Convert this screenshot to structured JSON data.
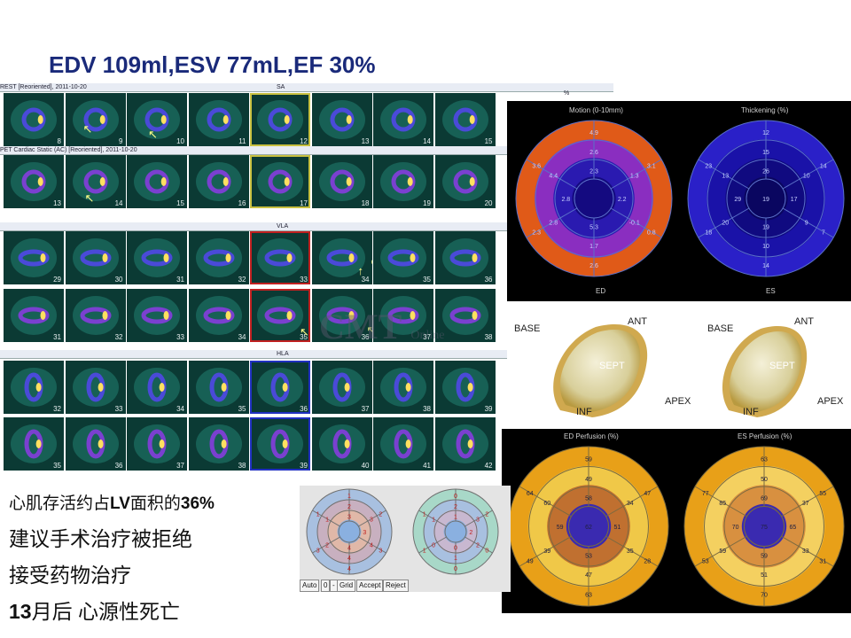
{
  "title": "EDV 109ml,ESV 77mL,EF 30%",
  "scan_panel": {
    "sa_header": "REST [Reoriented], 2011-10-20",
    "sa_view": "SA",
    "pct_label": "%",
    "pet_header": "PET Cardiac Static (AC) [Reoriented], 2011-10-20",
    "vla_view": "VLA",
    "hla_view": "HLA",
    "rows": [
      {
        "name": "sa-rest",
        "slices": [
          "8",
          "9",
          "10",
          "11",
          "12",
          "13",
          "14",
          "15"
        ]
      },
      {
        "name": "sa-pet",
        "slices": [
          "13",
          "14",
          "15",
          "16",
          "17",
          "18",
          "19",
          "20"
        ]
      },
      {
        "name": "vla-rest",
        "slices": [
          "29",
          "30",
          "31",
          "32",
          "33",
          "34",
          "35",
          "36"
        ]
      },
      {
        "name": "vla-pet",
        "slices": [
          "31",
          "32",
          "33",
          "34",
          "35",
          "36",
          "37",
          "38"
        ]
      },
      {
        "name": "hla-rest",
        "slices": [
          "32",
          "33",
          "34",
          "35",
          "36",
          "37",
          "38",
          "39"
        ]
      },
      {
        "name": "hla-pet",
        "slices": [
          "35",
          "36",
          "37",
          "38",
          "39",
          "40",
          "41",
          "42"
        ]
      }
    ]
  },
  "watermark": {
    "main": "CMT",
    "sub": "Online"
  },
  "polar_top": {
    "motion_title": "Motion (0-10mm)",
    "thickening_title": "Thickening (%)",
    "ed_label": "ED",
    "es_label": "ES",
    "motion_values": [
      "4.9",
      "3.1",
      "0.8",
      "2.6",
      "2.3",
      "3.6",
      "2.6",
      "1.3",
      "-0.1",
      "1.7",
      "2.8",
      "4.4",
      "2.3",
      "2.2",
      "5.3",
      "2.8"
    ],
    "thickening_values": [
      "12",
      "14",
      "7",
      "14",
      "18",
      "23",
      "15",
      "10",
      "9",
      "10",
      "20",
      "13",
      "26",
      "17",
      "19",
      "29",
      "19"
    ]
  },
  "models": {
    "base": "BASE",
    "ant": "ANT",
    "sept": "SEPT",
    "inf": "INF",
    "apex": "APEX"
  },
  "polar_bottom": {
    "ed_title": "ED Perfusion (%)",
    "es_title": "ES Perfusion (%)",
    "ed_values": [
      "59",
      "47",
      "28",
      "63",
      "49",
      "64",
      "49",
      "34",
      "35",
      "47",
      "39",
      "60",
      "58",
      "51",
      "53",
      "59",
      "62"
    ],
    "es_values": [
      "63",
      "55",
      "31",
      "70",
      "53",
      "77",
      "50",
      "37",
      "33",
      "51",
      "59",
      "85",
      "69",
      "65",
      "59",
      "70",
      "75"
    ]
  },
  "segment_maps": {
    "left_values": [
      "1",
      "2",
      "3",
      "4",
      "3",
      "1",
      "2",
      "3",
      "4",
      "4",
      "2",
      "1",
      "3",
      "3",
      "4"
    ],
    "right_values": [
      "0",
      "2",
      "0",
      "0",
      "1",
      "1",
      "2",
      "3",
      "2",
      "1",
      "0",
      "1",
      "1",
      "2",
      "0"
    ],
    "buttons": [
      "Auto",
      "0",
      "-",
      "Grid",
      "Accept",
      "Reject"
    ]
  },
  "text": {
    "line1_a": "心肌存活约占",
    "line1_b": "LV",
    "line1_c": "面积的",
    "line1_d": "36%",
    "line2": "建议手术治疗被拒绝",
    "line3": "接受药物治疗",
    "line4_a": "13",
    "line4_b": "月后 心源性死亡"
  },
  "colors": {
    "title": "#1a2a7a",
    "scan_bg": "#0b3a34",
    "polar_bg": "#000000"
  }
}
